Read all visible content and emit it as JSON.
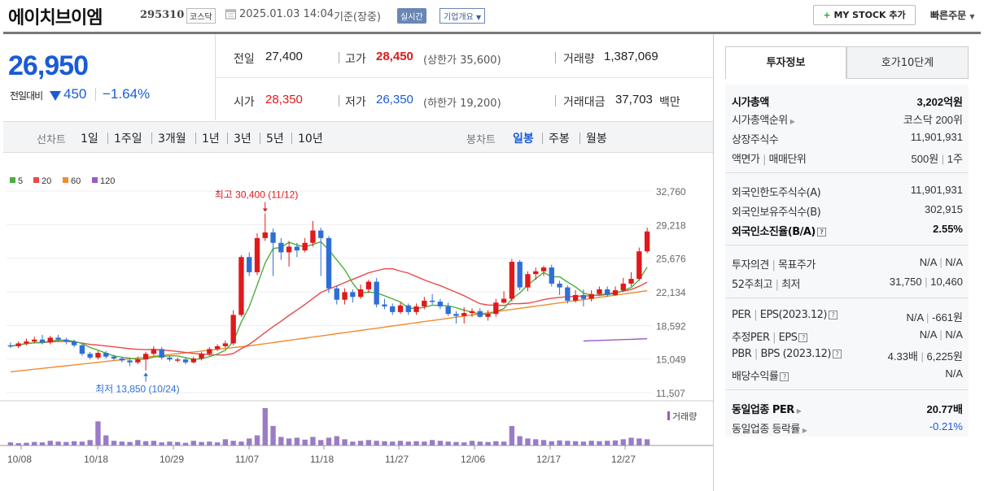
{
  "header": {
    "name": "에이치브이엠",
    "code": "295310",
    "market_tag": "코스닥",
    "timestamp": "2025.01.03 14:04",
    "basis": "기준(장중)",
    "realtime_badge": "실시간",
    "corp_info": "기업개요",
    "mystock_label": "MY STOCK 추가",
    "quick_order": "빠른주문"
  },
  "price": {
    "current": "26,950",
    "change_label": "전일대비",
    "change_value": "450",
    "change_pct": "−1.64%"
  },
  "summary": {
    "prev_label": "전일",
    "prev": "27,400",
    "high_label": "고가",
    "high": "28,450",
    "upper_limit": "(상한가 35,600)",
    "volume_label": "거래량",
    "volume": "1,387,069",
    "open_label": "시가",
    "open": "28,350",
    "low_label": "저가",
    "low": "26,350",
    "lower_limit": "(하한가 19,200)",
    "amount_label": "거래대금",
    "amount": "37,703",
    "amount_unit": "백만"
  },
  "chart_tabs": {
    "line_label": "선차트",
    "line_periods": [
      "1일",
      "1주일",
      "3개월",
      "1년",
      "3년",
      "5년",
      "10년"
    ],
    "candle_label": "봉차트",
    "candle_periods": [
      "일봉",
      "주봉",
      "월봉"
    ],
    "active_candle": "일봉"
  },
  "right_tabs": {
    "invest": "투자정보",
    "orderbook": "호가10단계"
  },
  "invest": {
    "mcap_label": "시가총액",
    "mcap": "3,202억원",
    "rank_label": "시가총액순위",
    "rank": "코스닥 200위",
    "shares_label": "상장주식수",
    "shares": "11,901,931",
    "face_label": "액면가",
    "unit_label": "매매단위",
    "face": "500원",
    "unit": "1주",
    "foreign_limit_label": "외국인한도주식수(A)",
    "foreign_limit": "11,901,931",
    "foreign_hold_label": "외국인보유주식수(B)",
    "foreign_hold": "302,915",
    "foreign_rate_label": "외국인소진율(B/A)",
    "foreign_rate": "2.55%",
    "opinion_label": "투자의견",
    "target_label": "목표주가",
    "opinion": "N/A",
    "target": "N/A",
    "w52_high_label": "52주최고",
    "w52_low_label": "최저",
    "w52_high": "31,750",
    "w52_low": "10,460",
    "per_label": "PER",
    "eps_label": "EPS(2023.12)",
    "per": "N/A",
    "eps": "-661원",
    "est_per_label": "추정PER",
    "est_eps_label": "EPS",
    "est_per": "N/A",
    "est_eps": "N/A",
    "pbr_label": "PBR",
    "bps_label": "BPS (2023.12)",
    "pbr": "4.33배",
    "bps": "6,225원",
    "div_label": "배당수익률",
    "div": "N/A",
    "sector_per_label": "동일업종 PER",
    "sector_per": "20.77배",
    "sector_chg_label": "동일업종 등락률",
    "sector_chg": "-0.21%"
  },
  "chart_data": {
    "type": "candlestick",
    "legend": [
      {
        "label": "5",
        "color": "#4caf3e"
      },
      {
        "label": "20",
        "color": "#e84a4a"
      },
      {
        "label": "60",
        "color": "#f08c2e"
      },
      {
        "label": "120",
        "color": "#9a5ac8"
      }
    ],
    "y_ticks": [
      "32,760",
      "29,218",
      "25,676",
      "22,134",
      "18,592",
      "15,049",
      "11,507"
    ],
    "ylim": [
      11507,
      32760
    ],
    "x_ticks": [
      "10/08",
      "10/18",
      "10/29",
      "11/07",
      "11/18",
      "11/27",
      "12/06",
      "12/17",
      "12/27"
    ],
    "high_annotation": "최고 30,400 (11/12)",
    "low_annotation": "최저 13,850 (10/24)",
    "volume_label": "거래량",
    "candles": [
      [
        16500,
        16400,
        16800,
        16200
      ],
      [
        16400,
        16700,
        16900,
        16200
      ],
      [
        16700,
        16900,
        17200,
        16500
      ],
      [
        16900,
        17100,
        17400,
        16700
      ],
      [
        17100,
        16800,
        17600,
        16600
      ],
      [
        16800,
        17300,
        17500,
        16600
      ],
      [
        17300,
        17100,
        17600,
        16900
      ],
      [
        17100,
        16900,
        17300,
        16600
      ],
      [
        16900,
        16500,
        17100,
        16300
      ],
      [
        16500,
        15600,
        16700,
        15400
      ],
      [
        15600,
        15200,
        15800,
        15000
      ],
      [
        15200,
        15700,
        15900,
        15000
      ],
      [
        15700,
        15300,
        15900,
        15100
      ],
      [
        15300,
        15100,
        15500,
        14900
      ],
      [
        15100,
        14900,
        15300,
        14700
      ],
      [
        14900,
        14700,
        15100,
        14300
      ],
      [
        14700,
        15000,
        15300,
        14500
      ],
      [
        15000,
        15600,
        15800,
        13850
      ],
      [
        15600,
        16100,
        16400,
        15400
      ],
      [
        16100,
        15200,
        16300,
        15000
      ],
      [
        15200,
        15000,
        15400,
        14800
      ],
      [
        15000,
        15000,
        15200,
        14700
      ],
      [
        15000,
        14700,
        15200,
        14500
      ],
      [
        14700,
        15100,
        15300,
        14600
      ],
      [
        15100,
        15600,
        15800,
        14900
      ],
      [
        15600,
        16100,
        16300,
        15400
      ],
      [
        16100,
        16400,
        16600,
        15900
      ],
      [
        16400,
        16700,
        17000,
        16200
      ],
      [
        16700,
        19700,
        20200,
        16500
      ],
      [
        19700,
        25800,
        26000,
        19500
      ],
      [
        25800,
        24200,
        26300,
        23800
      ],
      [
        24200,
        27800,
        28300,
        23900
      ],
      [
        27800,
        28400,
        30400,
        27500
      ],
      [
        28400,
        27300,
        28800,
        23800
      ],
      [
        27300,
        26300,
        27800,
        25500
      ],
      [
        26300,
        26900,
        27500,
        24800
      ],
      [
        26900,
        26500,
        27300,
        25800
      ],
      [
        26500,
        27300,
        27800,
        26300
      ],
      [
        27300,
        28600,
        29600,
        26900
      ],
      [
        28600,
        27800,
        28900,
        23800
      ],
      [
        27800,
        22500,
        28000,
        22000
      ],
      [
        22500,
        21300,
        22800,
        20800
      ],
      [
        21300,
        22100,
        22500,
        20800
      ],
      [
        22100,
        21600,
        22400,
        21000
      ],
      [
        21600,
        22400,
        22900,
        21400
      ],
      [
        22400,
        23200,
        23400,
        22000
      ],
      [
        23200,
        20800,
        23600,
        20500
      ],
      [
        20800,
        20600,
        21400,
        20300
      ],
      [
        20600,
        20000,
        20900,
        19700
      ],
      [
        20000,
        20700,
        21000,
        19800
      ],
      [
        20700,
        20000,
        20900,
        19700
      ],
      [
        20000,
        20600,
        20900,
        19700
      ],
      [
        20600,
        21200,
        21600,
        20300
      ],
      [
        21200,
        21100,
        21900,
        20800
      ],
      [
        21100,
        20600,
        21400,
        20300
      ],
      [
        20600,
        19800,
        21000,
        19600
      ],
      [
        19800,
        19600,
        20100,
        18800
      ],
      [
        19600,
        19900,
        20500,
        18800
      ],
      [
        19900,
        20100,
        20400,
        19500
      ],
      [
        20100,
        19500,
        20400,
        19400
      ],
      [
        19500,
        19800,
        20200,
        19100
      ],
      [
        19800,
        21000,
        21400,
        19500
      ],
      [
        21000,
        21400,
        22200,
        20900
      ],
      [
        21400,
        25300,
        25600,
        21100
      ],
      [
        25300,
        22600,
        25500,
        22300
      ],
      [
        22600,
        24000,
        24300,
        22200
      ],
      [
        24000,
        24300,
        24700,
        23400
      ],
      [
        24300,
        24700,
        24900,
        23800
      ],
      [
        24700,
        23000,
        25000,
        22700
      ],
      [
        23000,
        22600,
        23300,
        21800
      ],
      [
        22600,
        21200,
        22800,
        20900
      ],
      [
        21200,
        21800,
        22300,
        21000
      ],
      [
        21800,
        21400,
        22400,
        20600
      ],
      [
        21400,
        21900,
        22300,
        21100
      ],
      [
        21900,
        22400,
        22700,
        21800
      ],
      [
        22400,
        21800,
        22700,
        21600
      ],
      [
        21800,
        22300,
        22700,
        21700
      ],
      [
        22300,
        23000,
        23600,
        22100
      ],
      [
        23000,
        23500,
        24200,
        22700
      ],
      [
        23500,
        26400,
        26800,
        23300
      ],
      [
        26400,
        28500,
        28900,
        26200
      ]
    ],
    "volumes": [
      8,
      6,
      7,
      9,
      8,
      12,
      10,
      9,
      11,
      10,
      14,
      62,
      26,
      12,
      10,
      9,
      14,
      11,
      12,
      8,
      10,
      9,
      7,
      12,
      9,
      10,
      8,
      16,
      12,
      10,
      18,
      26,
      96,
      50,
      22,
      18,
      20,
      15,
      22,
      14,
      20,
      24,
      16,
      10,
      12,
      14,
      12,
      11,
      10,
      12,
      10,
      11,
      10,
      14,
      12,
      10,
      9,
      8,
      12,
      10,
      9,
      11,
      10,
      50,
      24,
      18,
      16,
      14,
      11,
      13,
      12,
      11,
      10,
      12,
      11,
      12,
      13,
      16,
      20,
      18,
      16
    ]
  }
}
